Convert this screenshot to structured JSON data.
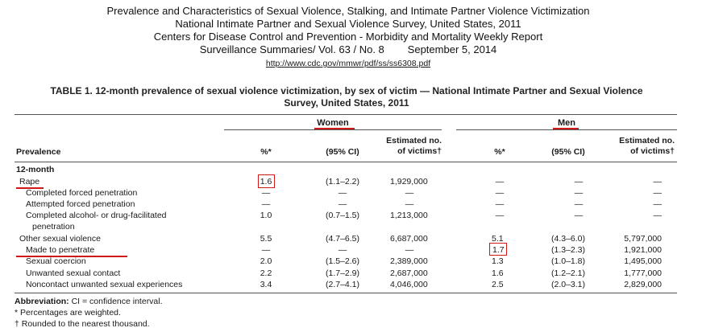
{
  "header": {
    "lines": [
      "Prevalence and Characteristics of Sexual Violence, Stalking, and Intimate Partner Violence Victimization",
      "National Intimate Partner and Sexual Violence Survey, United States, 2011",
      "Centers for Disease Control and Prevention - Morbidity and Mortality Weekly Report",
      "Surveillance Summaries/ Vol. 63 / No. 8        September 5, 2014"
    ],
    "url": "http://www.cdc.gov/mmwr/pdf/ss/ss6308.pdf"
  },
  "table": {
    "title_line1": "TABLE 1. 12-month prevalence of sexual violence victimization, by sex of victim — National Intimate Partner and Sexual Violence",
    "title_line2": "Survey, United States, 2011",
    "groups": {
      "women": "Women",
      "men": "Men"
    },
    "columns": {
      "prevalence": "Prevalence",
      "pct": "%*",
      "ci": "(95% CI)",
      "est_line1": "Estimated no.",
      "est_line2": "of victims†"
    },
    "section": "12-month",
    "rows": [
      {
        "label": "Rape",
        "w_pct": "1.6",
        "w_ci": "(1.1–2.2)",
        "w_est": "1,929,000",
        "m_pct": "—",
        "m_ci": "—",
        "m_est": "—"
      },
      {
        "label": "Completed forced penetration",
        "w_pct": "—",
        "w_ci": "—",
        "w_est": "—",
        "m_pct": "—",
        "m_ci": "—",
        "m_est": "—"
      },
      {
        "label": "Attempted forced penetration",
        "w_pct": "—",
        "w_ci": "—",
        "w_est": "—",
        "m_pct": "—",
        "m_ci": "—",
        "m_est": "—"
      },
      {
        "label": "Completed alcohol- or drug-facilitated",
        "label2": "penetration",
        "w_pct": "1.0",
        "w_ci": "(0.7–1.5)",
        "w_est": "1,213,000",
        "m_pct": "—",
        "m_ci": "—",
        "m_est": "—"
      },
      {
        "label": "Other sexual violence",
        "w_pct": "5.5",
        "w_ci": "(4.7–6.5)",
        "w_est": "6,687,000",
        "m_pct": "5.1",
        "m_ci": "(4.3–6.0)",
        "m_est": "5,797,000"
      },
      {
        "label": "Made to penetrate",
        "w_pct": "—",
        "w_ci": "—",
        "w_est": "—",
        "m_pct": "1.7",
        "m_ci": "(1.3–2.3)",
        "m_est": "1,921,000"
      },
      {
        "label": "Sexual coercion",
        "w_pct": "2.0",
        "w_ci": "(1.5–2.6)",
        "w_est": "2,389,000",
        "m_pct": "1.3",
        "m_ci": "(1.0–1.8)",
        "m_est": "1,495,000"
      },
      {
        "label": "Unwanted sexual contact",
        "w_pct": "2.2",
        "w_ci": "(1.7–2.9)",
        "w_est": "2,687,000",
        "m_pct": "1.6",
        "m_ci": "(1.2–2.1)",
        "m_est": "1,777,000"
      },
      {
        "label": "Noncontact unwanted sexual experiences",
        "w_pct": "3.4",
        "w_ci": "(2.7–4.1)",
        "w_est": "4,046,000",
        "m_pct": "2.5",
        "m_ci": "(2.0–3.1)",
        "m_est": "2,829,000"
      }
    ]
  },
  "footnotes": {
    "abbr_label": "Abbreviation:",
    "abbr_text": " CI = confidence interval.",
    "f1": "* Percentages are weighted.",
    "f2": "† Rounded to the nearest thousand."
  },
  "annotation_color": "#d01818"
}
